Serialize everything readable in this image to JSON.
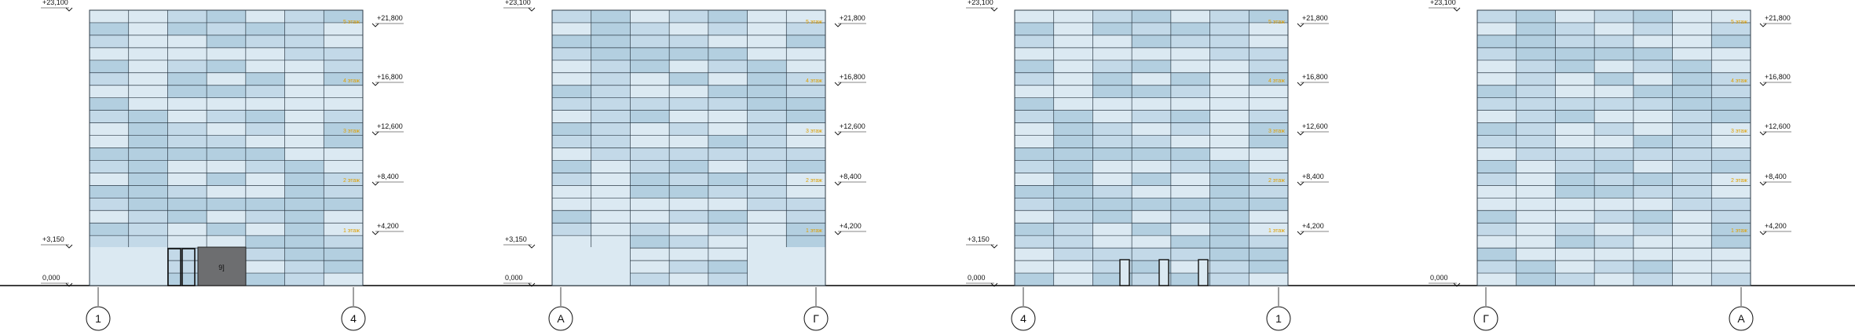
{
  "colors": {
    "panel_light": "#dbe9f2",
    "panel_mid": "#c3d9e8",
    "panel_dark": "#b3cfe0",
    "grid_line": "#2d3b47",
    "ground": "#000000",
    "floor_label": "#e0a000",
    "entrance_fill": "#6d6e70"
  },
  "elevations": [
    {
      "top_mark": "+23,100",
      "ground_mark": "0,000",
      "plinth_mark": "+3,150",
      "right_marks": [
        "+21,800",
        "+16,800",
        "+12,600",
        "+8,400",
        "+4,200"
      ],
      "floor_labels": [
        "5 этаж",
        "4 этаж",
        "3 этаж",
        "2 этаж",
        "1 этаж"
      ],
      "axis_left": "1",
      "axis_right": "4",
      "door_label": "9]"
    },
    {
      "top_mark": "+23,100",
      "ground_mark": "0,000",
      "plinth_mark": "+3,150",
      "right_marks": [
        "+21,800",
        "+16,800",
        "+12,600",
        "+8,400",
        "+4,200"
      ],
      "floor_labels": [
        "5 этаж",
        "4 этаж",
        "3 этаж",
        "2 этаж",
        "1 этаж"
      ],
      "axis_left": "А",
      "axis_right": "Г"
    },
    {
      "top_mark": "+23,100",
      "ground_mark": "0,000",
      "plinth_mark": "+3,150",
      "right_marks": [
        "+21,800",
        "+16,800",
        "+12,600",
        "+8,400",
        "+4,200"
      ],
      "floor_labels": [
        "5 этаж",
        "4 этаж",
        "3 этаж",
        "2 этаж",
        "1 этаж"
      ],
      "axis_left": "4",
      "axis_right": "1"
    },
    {
      "top_mark": "+23,100",
      "ground_mark": "0,000",
      "right_marks": [
        "+21,800",
        "+16,800",
        "+12,600",
        "+8,400",
        "+4,200"
      ],
      "floor_labels": [
        "5 этаж",
        "4 этаж",
        "3 этаж",
        "2 этаж",
        "1 этаж"
      ],
      "axis_left": "Г",
      "axis_right": "А"
    }
  ]
}
